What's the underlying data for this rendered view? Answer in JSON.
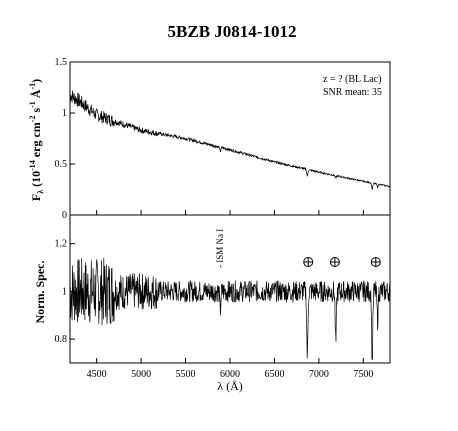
{
  "chart_data": [
    {
      "type": "line",
      "title": "5BZB J0814-1012",
      "panel": "top",
      "ylabel": "Fλ (10^-14 erg cm^-2 s^-1 Å^-1)",
      "xlim": [
        4200,
        7800
      ],
      "ylim": [
        0,
        1.5
      ],
      "y_ticks": [
        0,
        0.5,
        1,
        1.5
      ],
      "y_tick_labels": [
        "0",
        "0.5",
        "1",
        "1.5"
      ],
      "annotations": [
        "z = ? (BL Lac)",
        "SNR mean: 35"
      ],
      "continuum_knots": [
        [
          4200,
          1.18
        ],
        [
          4300,
          1.12
        ],
        [
          4500,
          0.98
        ],
        [
          5000,
          0.83
        ],
        [
          5500,
          0.75
        ],
        [
          6000,
          0.64
        ],
        [
          6500,
          0.52
        ],
        [
          7000,
          0.42
        ],
        [
          7500,
          0.33
        ],
        [
          7800,
          0.28
        ]
      ],
      "absorption_features": [
        {
          "x": 5890,
          "depth": 0.06
        },
        {
          "x": 6870,
          "depth": 0.15
        },
        {
          "x": 7190,
          "depth": 0.06
        },
        {
          "x": 7600,
          "depth": 0.2
        },
        {
          "x": 7660,
          "depth": 0.1
        }
      ],
      "grid": false
    },
    {
      "type": "line",
      "panel": "bottom",
      "ylabel": "Norm. Spec.",
      "xlabel": "λ (Å)",
      "xlim": [
        4200,
        7800
      ],
      "ylim": [
        0.7,
        1.32
      ],
      "x_ticks": [
        4500,
        5000,
        5500,
        6000,
        6500,
        7000,
        7500
      ],
      "x_tick_labels": [
        "4500",
        "5000",
        "5500",
        "6000",
        "6500",
        "7000",
        "7500"
      ],
      "y_ticks": [
        0.8,
        1,
        1.2
      ],
      "y_tick_labels": [
        "0.8",
        "1",
        "1.2"
      ],
      "baseline": 1.0,
      "absorption_features": [
        {
          "x": 5890,
          "depth": 0.08
        },
        {
          "x": 6870,
          "depth": 0.28
        },
        {
          "x": 7190,
          "depth": 0.22
        },
        {
          "x": 7600,
          "depth": 0.3
        },
        {
          "x": 7660,
          "depth": 0.12
        }
      ],
      "labels": [
        {
          "text": "ISM Na I",
          "x": 5890
        }
      ],
      "telluric_markers_x": [
        6880,
        7180,
        7640
      ],
      "grid": false
    }
  ]
}
